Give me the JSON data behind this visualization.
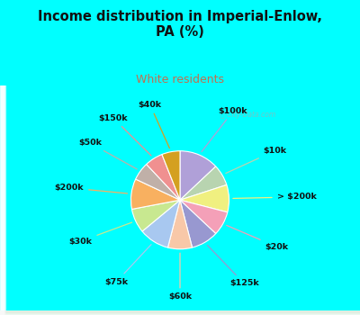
{
  "title": "Income distribution in Imperial-Enlow,\nPA (%)",
  "subtitle": "White residents",
  "bg_color": "#00FFFF",
  "labels": [
    "$100k",
    "$10k",
    "> $200k",
    "$20k",
    "$125k",
    "$60k",
    "$75k",
    "$30k",
    "$200k",
    "$50k",
    "$150k",
    "$40k"
  ],
  "values": [
    13,
    7,
    9,
    8,
    9,
    8,
    10,
    8,
    10,
    6,
    6,
    6
  ],
  "colors": [
    "#b0a0d8",
    "#b8d4b0",
    "#f0f080",
    "#f4a0b8",
    "#9898d0",
    "#f8c8a8",
    "#a8c8f0",
    "#c8e890",
    "#f8b060",
    "#c0b0a8",
    "#f09090",
    "#d4a020"
  ],
  "subtitle_color": "#c07050",
  "label_color": "#111111",
  "watermark": "City-Data.com"
}
